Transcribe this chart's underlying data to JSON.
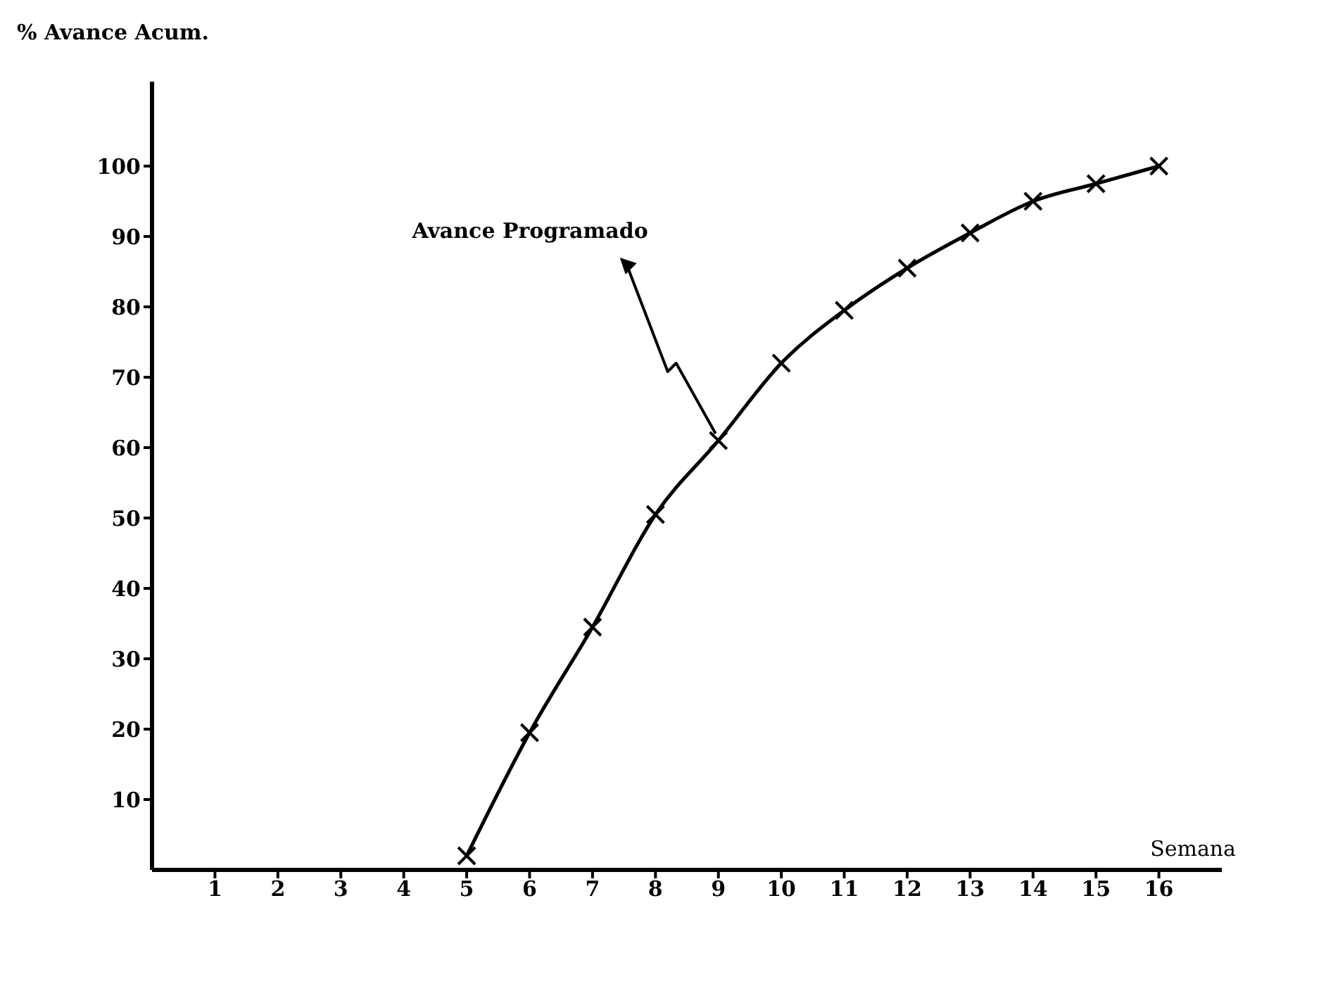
{
  "chart_data": {
    "type": "line",
    "xlabel": "Semana",
    "ylabel": "% Avance Acum.",
    "x": [
      5,
      6,
      7,
      8,
      9,
      10,
      11,
      12,
      13,
      14,
      15,
      16
    ],
    "series": [
      {
        "color": "#000000",
        "values": [
          2,
          19.5,
          34.5,
          50.5,
          61,
          72,
          79.5,
          85.5,
          90.5,
          95,
          97.5,
          100
        ]
      }
    ],
    "xlim": [
      0,
      17
    ],
    "xticks": [
      1,
      2,
      3,
      4,
      5,
      6,
      7,
      8,
      9,
      10,
      11,
      12,
      13,
      14,
      15,
      16
    ],
    "ylim": [
      0,
      112
    ],
    "yticks": [
      10,
      20,
      30,
      40,
      50,
      60,
      70,
      80,
      90,
      100
    ],
    "annotations": [
      {
        "text": "Avance Programado",
        "x": 9,
        "y": 61
      }
    ],
    "marker": "cross",
    "line_style": "solid",
    "grid": false,
    "legend": false
  }
}
